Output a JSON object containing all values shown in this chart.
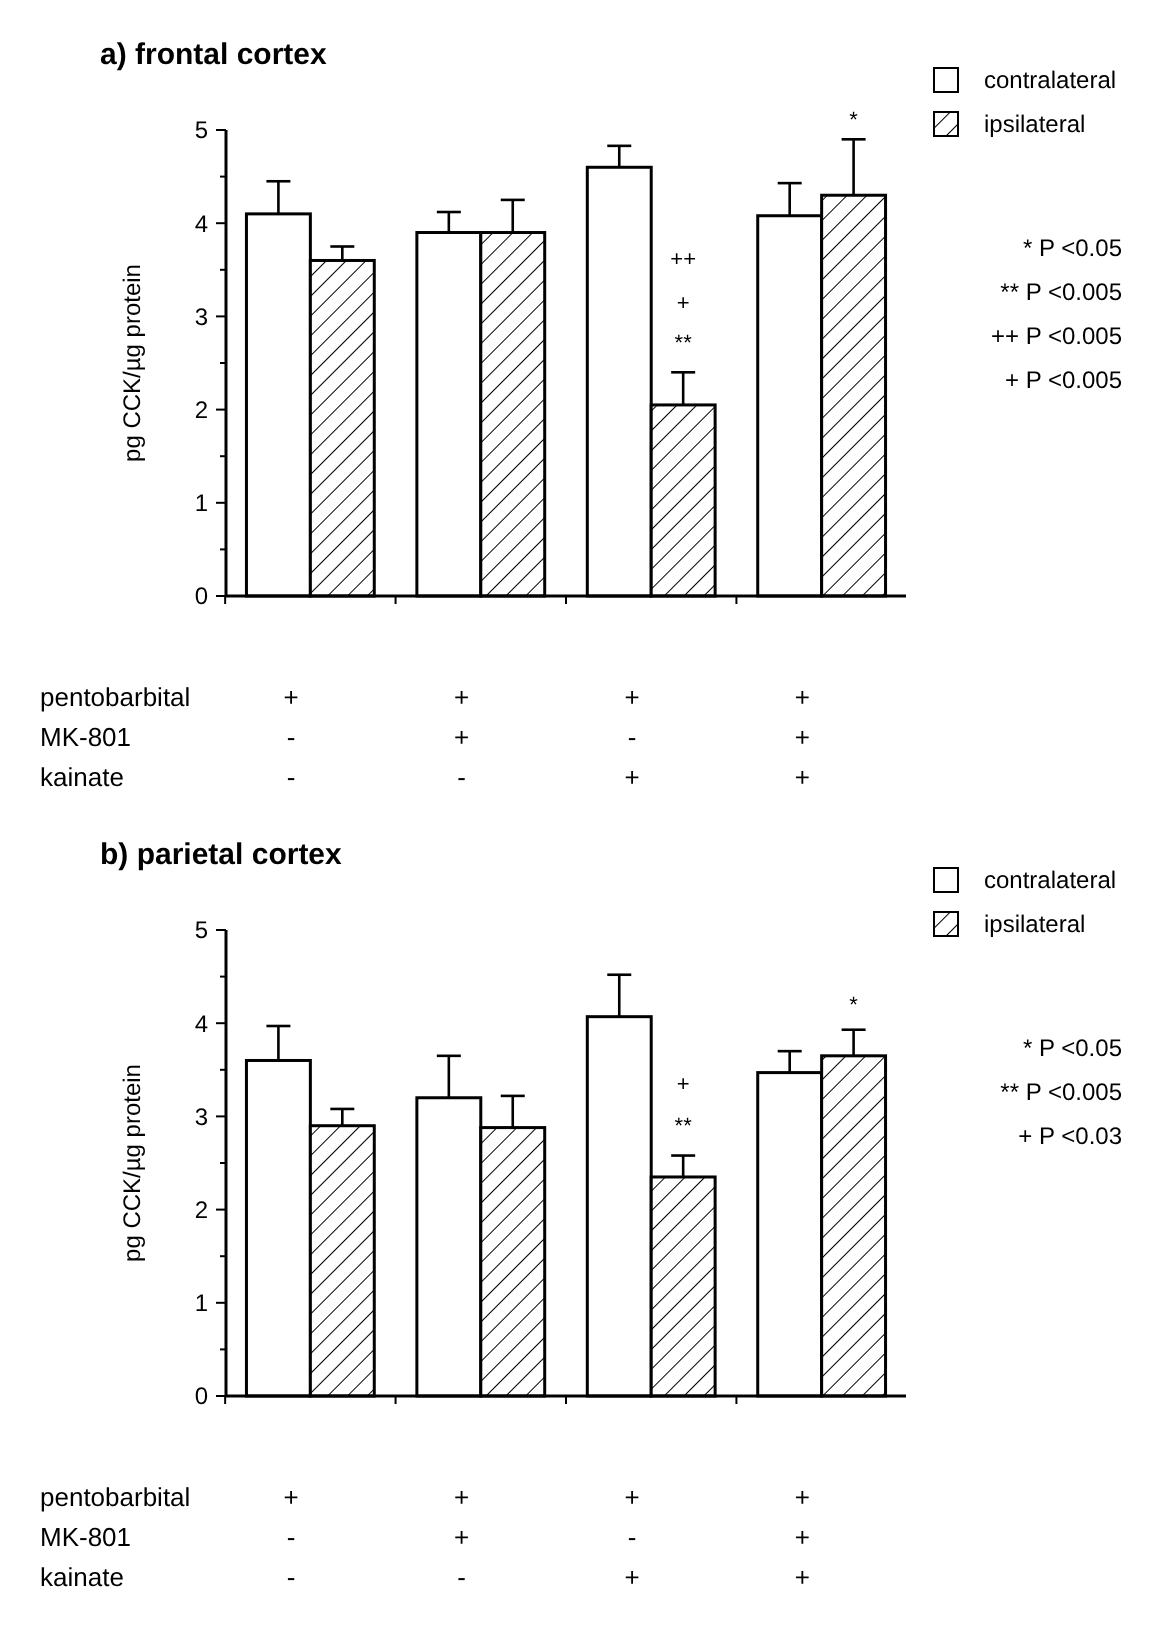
{
  "chart_data": [
    {
      "type": "bar",
      "title": "a) frontal cortex",
      "ylabel": "pg CCK/µg protein",
      "categories": [
        "+\n-\n-",
        "+\n+\n-",
        "+\n-\n+",
        "+\n+\n+"
      ],
      "series": [
        {
          "name": "contralateral",
          "color": "#ffffff",
          "values": [
            4.1,
            3.9,
            4.6,
            4.08
          ],
          "errors": [
            [
              4.1,
              4.45
            ],
            [
              3.9,
              4.12
            ],
            [
              4.6,
              4.83
            ],
            [
              4.08,
              4.43
            ]
          ]
        },
        {
          "name": "ipsilateral",
          "color": "#000000",
          "values": [
            3.6,
            3.9,
            2.05,
            4.3
          ],
          "errors": [
            [
              3.6,
              3.75
            ],
            [
              3.9,
              4.25
            ],
            [
              2.05,
              2.4
            ],
            [
              4.3,
              4.9
            ]
          ]
        }
      ],
      "ylim": [
        0,
        5
      ],
      "yticks": [
        0,
        {
          "value": 0.5,
          "label": null
        },
        1,
        {
          "value": 1.5,
          "label": null
        },
        2,
        {
          "value": 2.5,
          "label": null
        },
        3,
        {
          "value": 3.5,
          "label": null
        },
        4,
        {
          "value": 4.5,
          "label": null
        },
        5
      ],
      "legend": "top right",
      "grid": false,
      "annotations": [
        "++",
        "+",
        "**",
        "*",
        "* P <0.05",
        "** P <0.005",
        "++ P <0.005",
        "+ P <0.005",
        "pentobarbital",
        "MK-801",
        "kainate"
      ]
    },
    {
      "type": "bar",
      "title": "b) parietal cortex",
      "ylabel": "pg CCK/µg protein",
      "categories": [
        "+\n-\n-",
        "+\n+\n-",
        "+\n-\n+",
        "+\n+\n+"
      ],
      "series": [
        {
          "name": "contralateral",
          "color": "#ffffff",
          "values": [
            3.6,
            3.2,
            4.07,
            3.47
          ],
          "errors": [
            [
              3.6,
              3.97
            ],
            [
              3.2,
              3.65
            ],
            [
              4.07,
              4.52
            ],
            [
              3.47,
              3.7
            ]
          ]
        },
        {
          "name": "ipsilateral",
          "color": "#000000",
          "values": [
            2.9,
            2.88,
            2.35,
            3.65
          ],
          "errors": [
            [
              2.9,
              3.08
            ],
            [
              2.88,
              3.22
            ],
            [
              2.35,
              2.58
            ],
            [
              3.65,
              3.93
            ]
          ]
        }
      ],
      "ylim": [
        0,
        5
      ],
      "yticks": [
        0,
        {
          "value": 0.5,
          "label": null
        },
        1,
        {
          "value": 1.5,
          "label": null
        },
        2,
        {
          "value": 2.5,
          "label": null
        },
        3,
        {
          "value": 3.5,
          "label": null
        },
        4,
        {
          "value": 4.5,
          "label": null
        },
        5
      ],
      "legend": "top right",
      "grid": false,
      "annotations": [
        "+",
        "**",
        "*",
        "* P <0.05",
        "** P <0.005",
        "+ P <0.03",
        "pentobarbital",
        "MK-801",
        "kainate"
      ]
    }
  ]
}
